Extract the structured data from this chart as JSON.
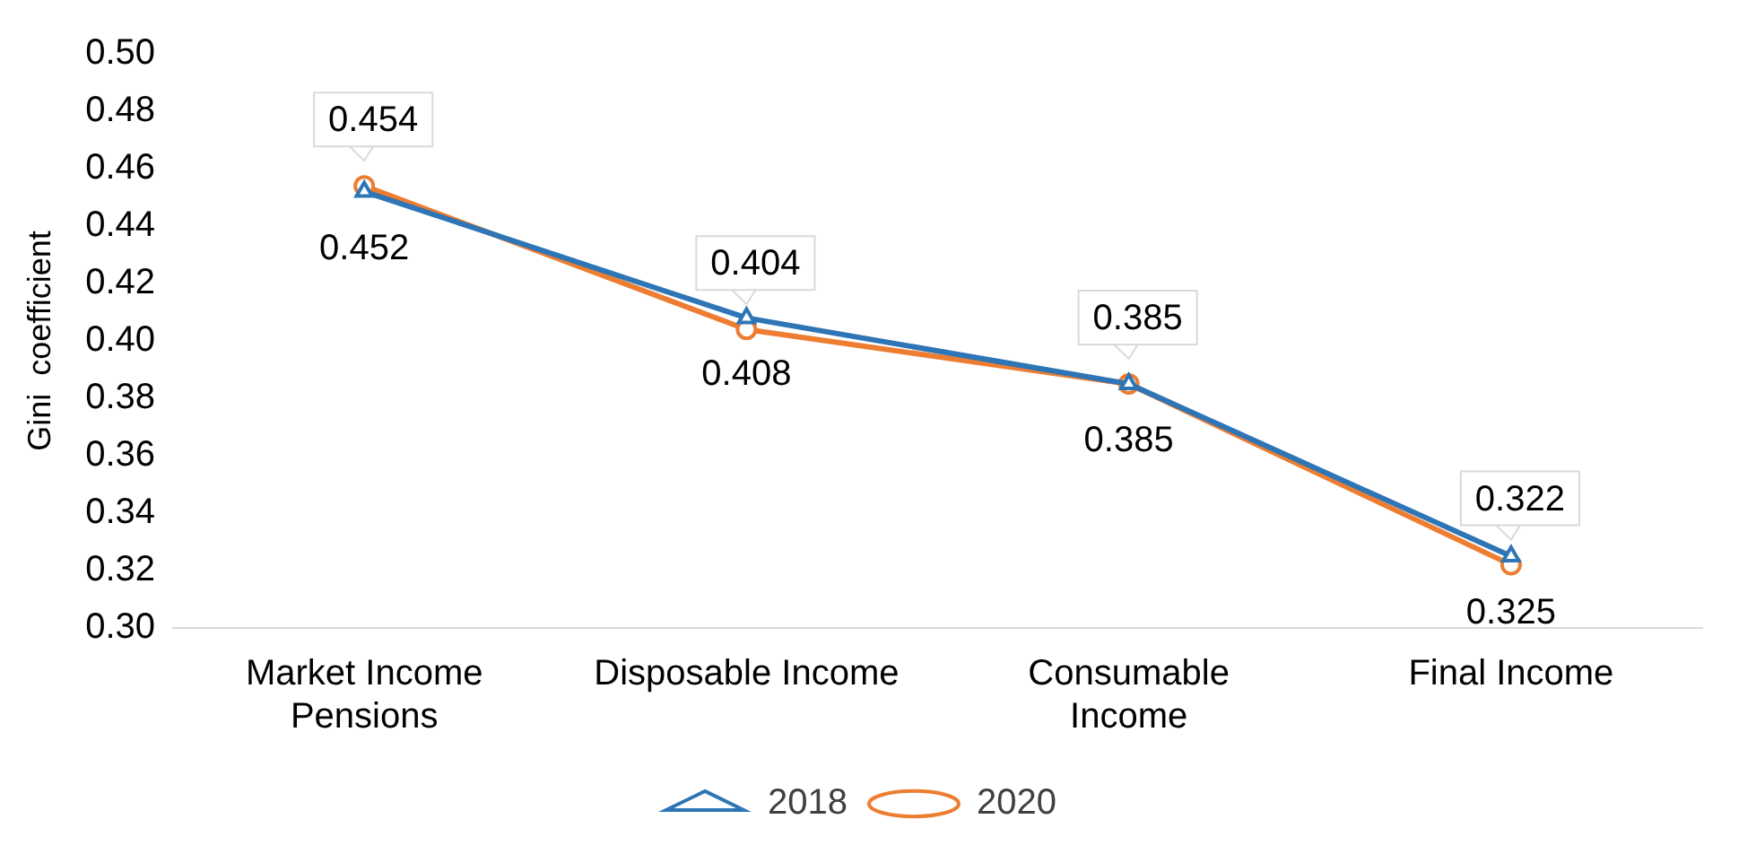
{
  "chart_data": {
    "type": "line",
    "ylabel": "Gini  coefficient",
    "categories": [
      "Market Income\nPensions",
      "Disposable Income",
      "Consumable\nIncome",
      "Final Income"
    ],
    "series": [
      {
        "name": "2018",
        "color": "#2e75b6",
        "values": [
          0.452,
          0.408,
          0.385,
          0.325
        ],
        "marker": "triangle"
      },
      {
        "name": "2020",
        "color": "#ed7d31",
        "values": [
          0.454,
          0.404,
          0.385,
          0.322
        ],
        "marker": "circle"
      }
    ],
    "ylim": [
      0.3,
      0.5
    ],
    "yticks": [
      {
        "value": 0.3,
        "label": "0.30"
      },
      {
        "value": 0.32,
        "label": "0.32"
      },
      {
        "value": 0.34,
        "label": "0.34"
      },
      {
        "value": 0.36,
        "label": "0.36"
      },
      {
        "value": 0.38,
        "label": "0.38"
      },
      {
        "value": 0.4,
        "label": "0.40"
      },
      {
        "value": 0.42,
        "label": "0.42"
      },
      {
        "value": 0.44,
        "label": "0.44"
      },
      {
        "value": 0.46,
        "label": "0.46"
      },
      {
        "value": 0.48,
        "label": "0.48"
      },
      {
        "value": 0.5,
        "label": "0.50"
      }
    ],
    "grid": false,
    "legend": "bottom",
    "data_labels": true,
    "line_style": "solid"
  }
}
